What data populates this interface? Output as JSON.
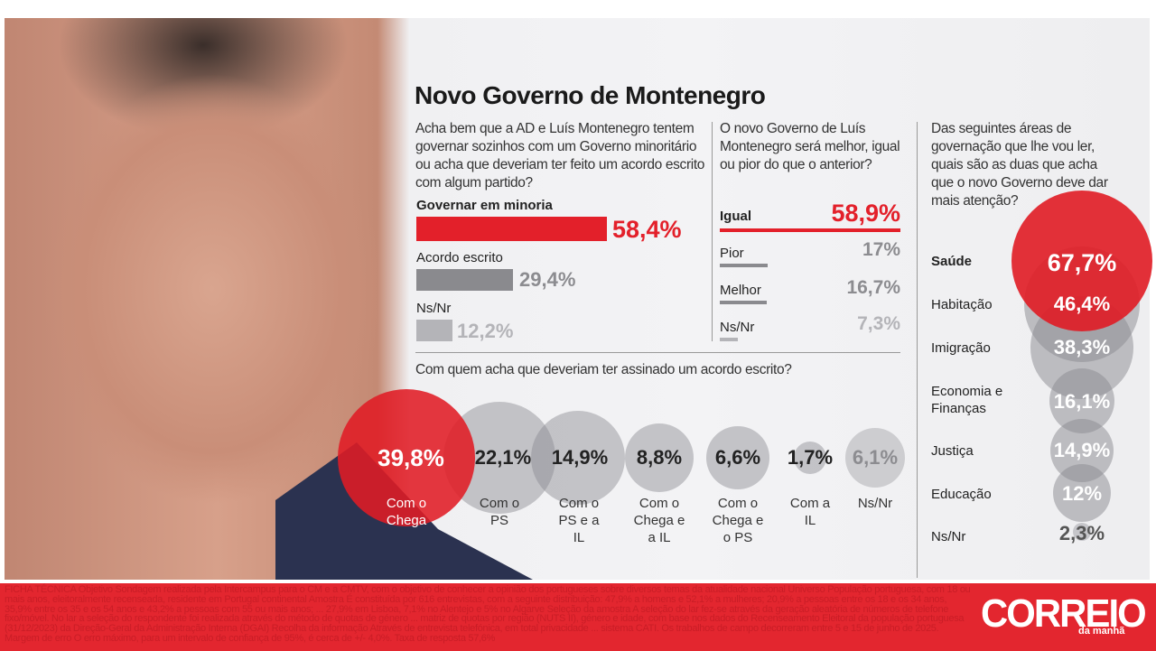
{
  "title": "Novo Governo de Montenegro",
  "q1": {
    "question": "Acha bem que a AD e Luís Montenegro tentem governar sozinhos com um Governo minoritário ou acha que deveriam ter feito um acordo escrito com algum partido?",
    "items": [
      {
        "label": "Governar em minoria",
        "value": "58,4%",
        "num": 58.4
      },
      {
        "label": "Acordo escrito",
        "value": "29,4%",
        "num": 29.4
      },
      {
        "label": "Ns/Nr",
        "value": "12,2%",
        "num": 12.2
      }
    ]
  },
  "q2": {
    "question": "O novo Governo de Luís Montenegro será melhor, igual ou pior do que o anterior?",
    "items": [
      {
        "label": "Igual",
        "value": "58,9%",
        "num": 58.9
      },
      {
        "label": "Pior",
        "value": "17%",
        "num": 17
      },
      {
        "label": "Melhor",
        "value": "16,7%",
        "num": 16.7
      },
      {
        "label": "Ns/Nr",
        "value": "7,3%",
        "num": 7.3
      }
    ]
  },
  "q3": {
    "question": "Com quem acha que deveriam ter assinado um acordo escrito?",
    "items": [
      {
        "label": "Com o Chega",
        "value": "39,8%",
        "num": 39.8
      },
      {
        "label": "Com o PS",
        "value": "22,1%",
        "num": 22.1
      },
      {
        "label": "Com o PS e a IL",
        "value": "14,9%",
        "num": 14.9
      },
      {
        "label": "Com o Chega e a IL",
        "value": "8,8%",
        "num": 8.8
      },
      {
        "label": "Com o Chega e o PS",
        "value": "6,6%",
        "num": 6.6
      },
      {
        "label": "Com a IL",
        "value": "1,7%",
        "num": 1.7
      },
      {
        "label": "Ns/Nr",
        "value": "6,1%",
        "num": 6.1
      }
    ]
  },
  "q4": {
    "question": "Das seguintes áreas de governação que lhe vou ler, quais são as duas que acha que o novo Governo deve dar mais atenção?",
    "items": [
      {
        "label": "Saúde",
        "value": "67,7%",
        "num": 67.7
      },
      {
        "label": "Habitação",
        "value": "46,4%",
        "num": 46.4
      },
      {
        "label": "Imigração",
        "value": "38,3%",
        "num": 38.3
      },
      {
        "label": "Economia e Finanças",
        "value": "16,1%",
        "num": 16.1
      },
      {
        "label": "Justiça",
        "value": "14,9%",
        "num": 14.9
      },
      {
        "label": "Educação",
        "value": "12%",
        "num": 12
      },
      {
        "label": "Ns/Nr",
        "value": "2,3%",
        "num": 2.3
      }
    ]
  },
  "footer": {
    "text": "FICHA TÉCNICA Objetivo Sondagem realizada pela Intercampus para o CM e a CMTV, com o objetivo de conhecer a opinião dos portugueses sobre diversos temas da atualidade nacional Universo População portuguesa, com 18 ou mais anos, eleitoralmente recenseada, residente em Portugal continental Amostra É constituída por 616 entrevistas, com a seguinte distribuição: 47,9% a homens e 52,1% a mulheres; 20,9% a pessoas entre os 18 e os 34 anos, 35,9% entre os 35 e os 54 anos e 43,2% a pessoas com 55 ou mais anos; ... 27,9% em Lisboa, 7,1% no Alentejo e 5% no Algarve Seleção da amostra A seleção do lar fez-se através da geração aleatória de números de telefone fixo/móvel. No lar a seleção do respondente foi realizada através do método de quotas de género ... matriz de quotas por região (NUTS II), género e idade, com base nos dados do Recenseamento Eleitoral da população portuguesa (31/12/2023) da Direção-Geral da Administração Interna (DGAI) Recolha da informação Através de entrevista telefónica, em total privacidade ... sistema CATI. Os trabalhos de campo decorreram entre 5 e 15 de junho de 2025. Margem de erro O erro máximo, para um intervalo de confiança de 95%, é cerca de +/- 4,0%. Taxa de resposta 57,6%"
  },
  "logo": {
    "name": "CORREIO",
    "sub": "da manhã"
  },
  "colors": {
    "accent": "#e3202a",
    "bar_gray": "#8a8a8e",
    "light_gray": "#b4b4b8"
  }
}
